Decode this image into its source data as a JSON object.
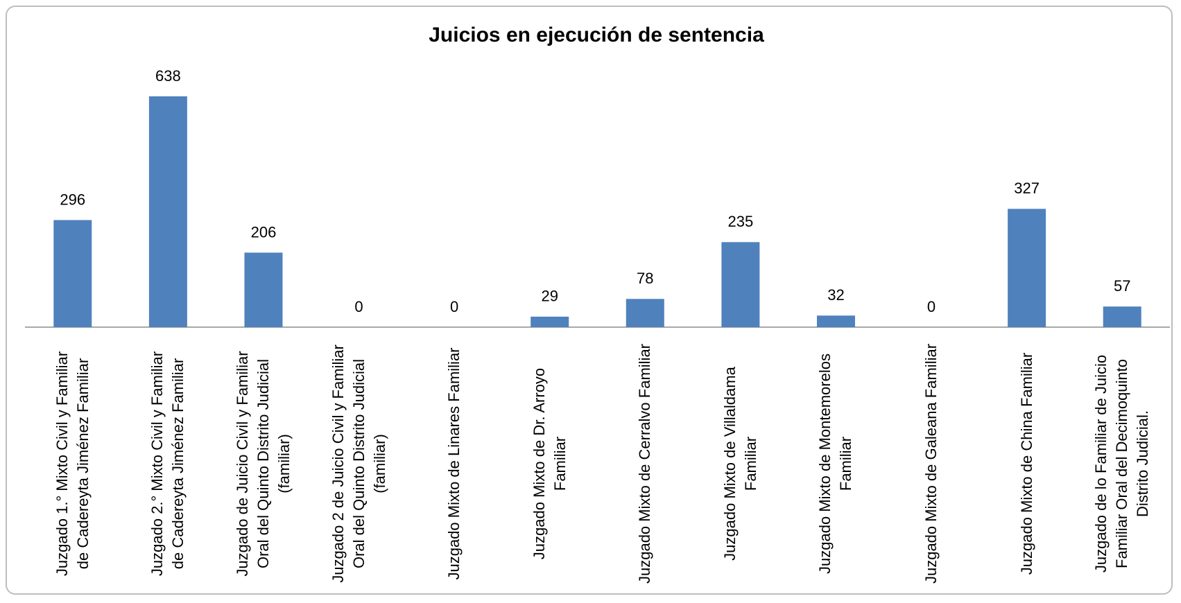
{
  "chart_data": {
    "type": "bar",
    "title": "Juicios en ejecución de sentencia",
    "categories": [
      "Juzgado 1.° Mixto Civil y Familiar de Cadereyta Jiménez Familiar",
      "Juzgado 2.° Mixto Civil y Familiar de Cadereyta Jiménez Familiar",
      "Juzgado de Juicio Civil y Familiar Oral del  Quinto Distrito Judicial (familiar)",
      "Juzgado 2 de Juicio Civil y Familiar Oral del  Quinto Distrito Judicial (familiar)",
      "Juzgado Mixto de Linares Familiar",
      "Juzgado Mixto de Dr. Arroyo Familiar",
      "Juzgado Mixto de Cerralvo Familiar",
      "Juzgado Mixto de Villaldama Familiar",
      "Juzgado Mixto de Montemorelos Familiar",
      "Juzgado Mixto de Galeana Familiar",
      "Juzgado Mixto de China Familiar",
      "Juzgado de lo Familiar de Juicio Familiar Oral del Decimoquinto Distrito Judicial."
    ],
    "values": [
      296,
      638,
      206,
      0,
      0,
      29,
      78,
      235,
      32,
      0,
      327,
      57
    ],
    "color": "#4f81bd"
  }
}
